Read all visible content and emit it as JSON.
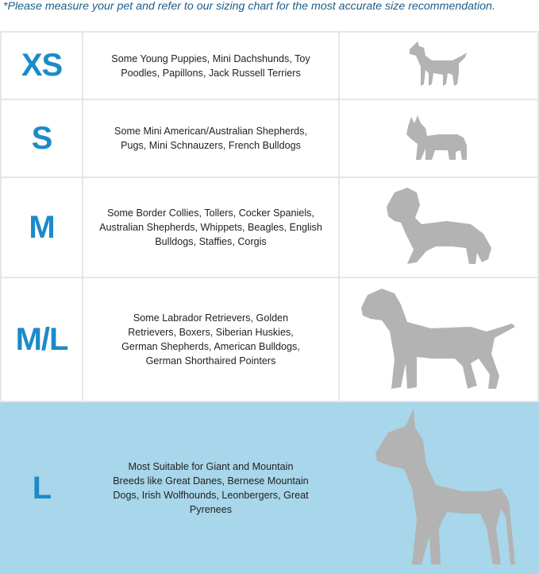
{
  "note": "*Please measure your pet and refer to our sizing chart for the most accurate size recommendation.",
  "colors": {
    "accent": "#1b8bc8",
    "highlight_row": "#a8d6ea",
    "silhouette": "#b3b3b3",
    "note_text": "#1e5d8a"
  },
  "rows": [
    {
      "size": "XS",
      "description": "Some Young Puppies, Mini Dachshunds, Toy Poodles, Papillons, Jack Russell Terriers",
      "icon": "small-dog-silhouette"
    },
    {
      "size": "S",
      "description": "Some Mini American/Australian Shepherds, Pugs, Mini Schnauzers, French Bulldogs",
      "icon": "french-bulldog-silhouette"
    },
    {
      "size": "M",
      "description": "Some Border Collies, Tollers, Cocker Spaniels, Australian Shepherds, Whippets, Beagles, English Bulldogs, Staffies, Corgis",
      "icon": "spaniel-silhouette"
    },
    {
      "size": "M/L",
      "description": "Some Labrador Retrievers, Golden Retrievers, Boxers, Siberian Huskies, German Shepherds, American Bulldogs, German Shorthaired Pointers",
      "icon": "labrador-silhouette"
    },
    {
      "size": "L",
      "description": "Most Suitable for Giant and Mountain Breeds like Great Danes, Bernese Mountain Dogs, Irish Wolfhounds, Leonbergers, Great Pyrenees",
      "icon": "great-dane-silhouette",
      "highlighted": true
    }
  ]
}
